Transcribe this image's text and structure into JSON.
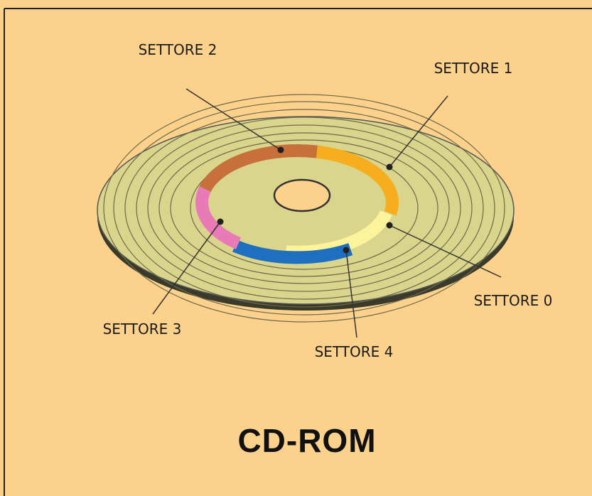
{
  "title": "CD-ROM",
  "sectors": [
    {
      "label": "SETTORE 0",
      "color": "#fdf39a"
    },
    {
      "label": "SETTORE 1",
      "color": "#f6ad1e"
    },
    {
      "label": "SETTORE 2",
      "color": "#c8703a"
    },
    {
      "label": "SETTORE 3",
      "color": "#e87ab8"
    },
    {
      "label": "SETTORE 4",
      "color": "#1f6fc0"
    }
  ]
}
